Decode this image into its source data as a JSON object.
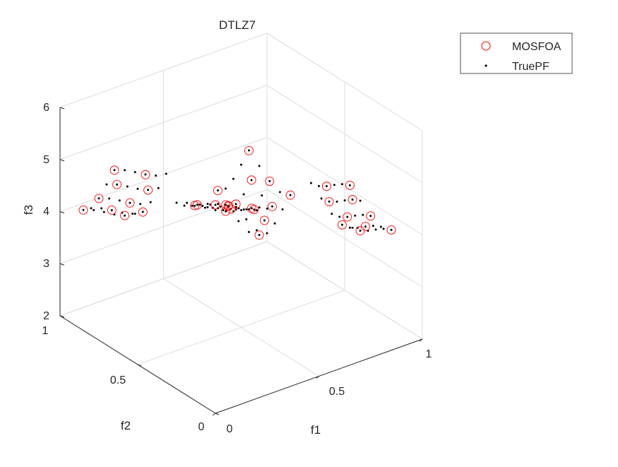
{
  "chart_data": {
    "type": "scatter",
    "title": "DTLZ7",
    "xlabel": "f1",
    "ylabel": "f2",
    "zlabel": "f3",
    "xlim": [
      0,
      1
    ],
    "ylim": [
      0,
      1
    ],
    "zlim": [
      2,
      6
    ],
    "x_ticks": [
      "0",
      "0.5",
      "1"
    ],
    "y_ticks": [
      "0",
      "0.5",
      "1"
    ],
    "z_ticks": [
      "2",
      "3",
      "4",
      "5",
      "6"
    ],
    "grid": true,
    "legend_position": "top-right",
    "series": [
      {
        "name": "MOSFOA",
        "marker": "open-circle",
        "color": "#ff0000",
        "points": [
          [
            0,
            0,
            6.0
          ],
          [
            0.05,
            0,
            5.93
          ],
          [
            0.1,
            0.05,
            5.75
          ],
          [
            0.15,
            0.1,
            5.52
          ],
          [
            0.2,
            0.2,
            5.22
          ],
          [
            0.25,
            0.1,
            5.39
          ],
          [
            0.05,
            0.2,
            5.54
          ],
          [
            0.25,
            0.25,
            5.15
          ],
          [
            0.1,
            0.25,
            5.39
          ],
          [
            0.65,
            0,
            5.45
          ],
          [
            0.7,
            0.05,
            5.01
          ],
          [
            0.75,
            0,
            4.72
          ],
          [
            0.8,
            0.1,
            4.26
          ],
          [
            0.85,
            0.2,
            3.92
          ],
          [
            0.85,
            0,
            4.31
          ],
          [
            0.7,
            0.2,
            4.69
          ],
          [
            0.65,
            0.15,
            5.15
          ],
          [
            0.8,
            0.25,
            4.01
          ],
          [
            0.75,
            0.15,
            4.42
          ],
          [
            0,
            0.65,
            5.45
          ],
          [
            0.05,
            0.7,
            5.01
          ],
          [
            0,
            0.75,
            4.72
          ],
          [
            0.1,
            0.8,
            4.26
          ],
          [
            0.2,
            0.85,
            3.92
          ],
          [
            0,
            0.85,
            4.31
          ],
          [
            0.2,
            0.7,
            4.69
          ],
          [
            0.15,
            0.65,
            5.15
          ],
          [
            0.25,
            0.8,
            4.01
          ],
          [
            0.15,
            0.75,
            4.42
          ],
          [
            0.65,
            0.65,
            4.9
          ],
          [
            0.7,
            0.7,
            4.17
          ],
          [
            0.75,
            0.65,
            4.17
          ],
          [
            0.8,
            0.75,
            3.16
          ],
          [
            0.85,
            0.85,
            2.62
          ],
          [
            0.65,
            0.85,
            3.76
          ],
          [
            0.85,
            0.65,
            3.76
          ],
          [
            0.7,
            0.8,
            3.52
          ],
          [
            0.8,
            0.7,
            3.52
          ],
          [
            0.75,
            0.75,
            3.44
          ]
        ]
      },
      {
        "name": "TruePF",
        "marker": "dot",
        "color": "#000000",
        "grid_values": [
          0,
          0.05,
          0.1,
          0.15,
          0.2,
          0.25,
          0.65,
          0.7,
          0.75,
          0.8,
          0.85
        ],
        "f3_formula": "6 - f1(1+sin(3πf1)) - f2(1+sin(3πf2))"
      }
    ]
  }
}
